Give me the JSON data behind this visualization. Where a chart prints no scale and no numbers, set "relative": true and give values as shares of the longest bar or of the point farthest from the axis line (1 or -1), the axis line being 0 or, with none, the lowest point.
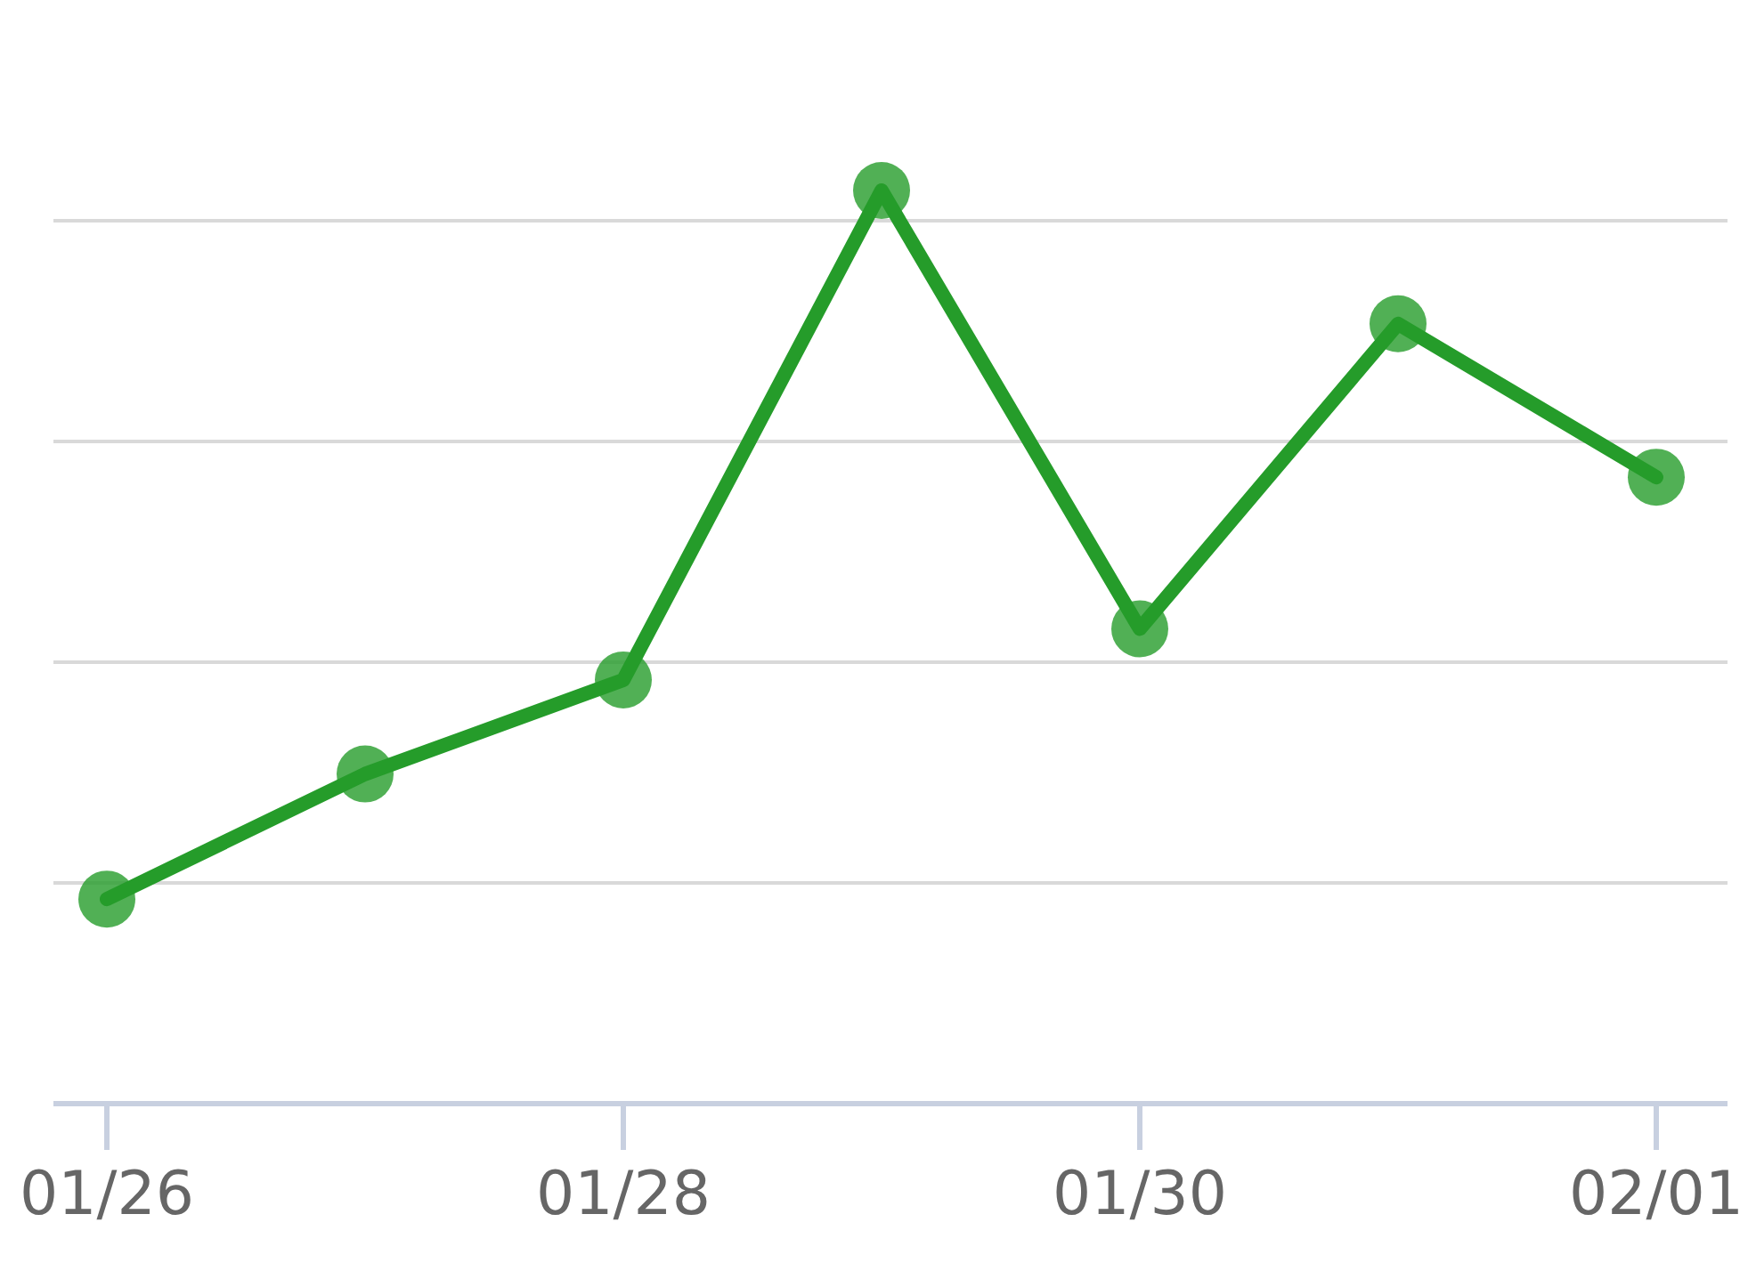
{
  "chart_data": {
    "type": "line",
    "relative": true,
    "categories": [
      "01/26",
      null,
      "01/28",
      null,
      "01/30",
      null,
      "02/01"
    ],
    "series": [
      {
        "color": "#259c2a",
        "values": [
          0.224,
          0.361,
          0.464,
          1,
          0.52,
          0.854,
          0.686
        ]
      }
    ],
    "grid": "y",
    "marker": "circle",
    "line_style": "solid"
  }
}
